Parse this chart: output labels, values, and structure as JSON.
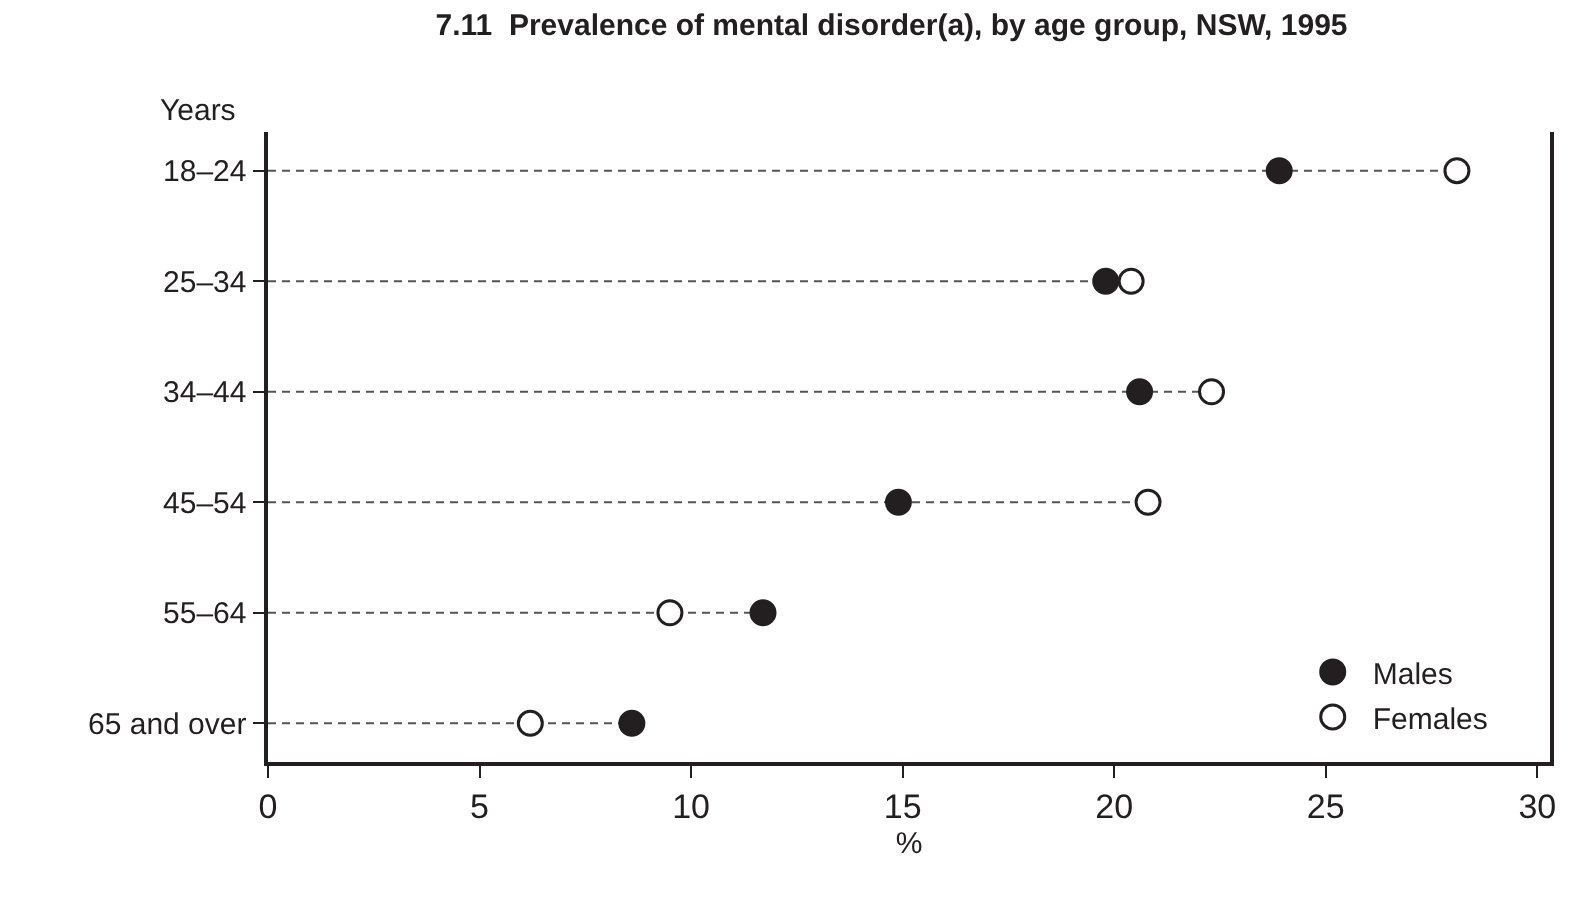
{
  "chart_data": {
    "type": "lollipop",
    "title": "7.11  Prevalence of mental disorder(a), by age group, NSW, 1995",
    "ylabel": "Years",
    "xlabel": "%",
    "orientation": "horizontal",
    "categories": [
      "18–24",
      "25–34",
      "34–44",
      "45–54",
      "55–64",
      "65 and over"
    ],
    "series": [
      {
        "name": "Males",
        "color": "#231f20",
        "values": [
          23.9,
          19.8,
          20.6,
          14.9,
          11.7,
          8.6
        ]
      },
      {
        "name": "Females",
        "color": "#ffffff",
        "values": [
          28.1,
          20.4,
          22.3,
          20.8,
          9.5,
          6.2
        ]
      }
    ],
    "xlim": [
      0,
      30.3
    ],
    "xticks": [
      0,
      5,
      10,
      15,
      20,
      25,
      30
    ],
    "marker": "circle",
    "line_style": "dashed",
    "legend": "bottom right"
  }
}
